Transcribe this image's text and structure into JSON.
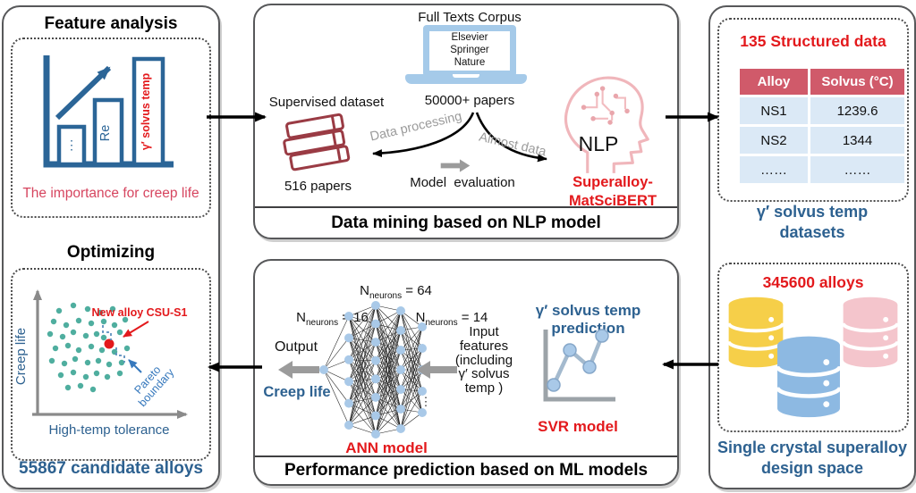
{
  "colors": {
    "accent_red": "#e3191c",
    "crimson_red": "#d6455f",
    "dark_blue_text": "#2d6190",
    "icon_blue": "#2b6597",
    "node_blue": "#a9c9e8",
    "laptop_blue": "#a5cae9",
    "teal_dot": "#4fae9f",
    "book_red": "#9a3b44",
    "head_pink": "#f0b6bb",
    "db_yellow": "#f6cf49",
    "db_pink": "#f4c5cc",
    "db_blue": "#8db9e2",
    "table_header_bg": "#d05a6a",
    "table_row_bg": "#dbe9f6",
    "gray_arrow": "#9b9b9b",
    "border_gray": "#57585a"
  },
  "left": {
    "feature_title": "Feature analysis",
    "bars": {
      "small": "⋮",
      "mid": "Re",
      "tall": "γ′ solvus temp"
    },
    "feature_caption": "The importance for creep life",
    "optimizing_title": "Optimizing",
    "scatter": {
      "new_alloy_label": "New alloy CSU-S1",
      "pareto_line1": "Pareto",
      "pareto_line2": "boundary",
      "ylabel": "Creep life",
      "xlabel": "High-temp tolerance"
    },
    "optimizing_caption": "55867 candidate alloys"
  },
  "nlp": {
    "corpus_title": "Full Texts Corpus",
    "laptop_text": "Elsevier\nSpringer\nNature",
    "papers_count": "50000+ papers",
    "supervised_label": "Supervised dataset",
    "books_caption": "516 papers",
    "data_processing_label": "Data processing",
    "almost_data_label": "Almost data",
    "model_eval_label": "Model  evaluation",
    "nlp_label": "NLP",
    "bert_name": "Superalloy-\nMatSciBERT",
    "footer": "Data mining based on NLP model"
  },
  "structured": {
    "title": "135 Structured data",
    "table": {
      "headers": [
        "Alloy",
        "Solvus (°C)"
      ],
      "rows": [
        [
          "NS1",
          "1239.6"
        ],
        [
          "NS2",
          "1344"
        ],
        [
          "……",
          "……"
        ]
      ]
    },
    "caption": "γ′ solvus temp\ndatasets"
  },
  "design": {
    "title": "345600 alloys",
    "caption": "Single crystal superalloy\ndesign space"
  },
  "ml": {
    "neuron_labels": [
      {
        "p": "N",
        "s": "neurons",
        "r": " = 16"
      },
      {
        "p": "N",
        "s": "neurons",
        "r": " = 64"
      },
      {
        "p": "N",
        "s": "neurons",
        "r": " = 14"
      }
    ],
    "output_label": "Output",
    "output_caption": "Creep life",
    "input_label": "Input\nfeatures\n(including\nγ′ solvus\ntemp )",
    "ellipsis": "⋮",
    "ann_caption": "ANN model",
    "svr_title": "γ′ solvus temp prediction",
    "svr_caption": "SVR model",
    "footer": "Performance prediction based on ML models"
  }
}
